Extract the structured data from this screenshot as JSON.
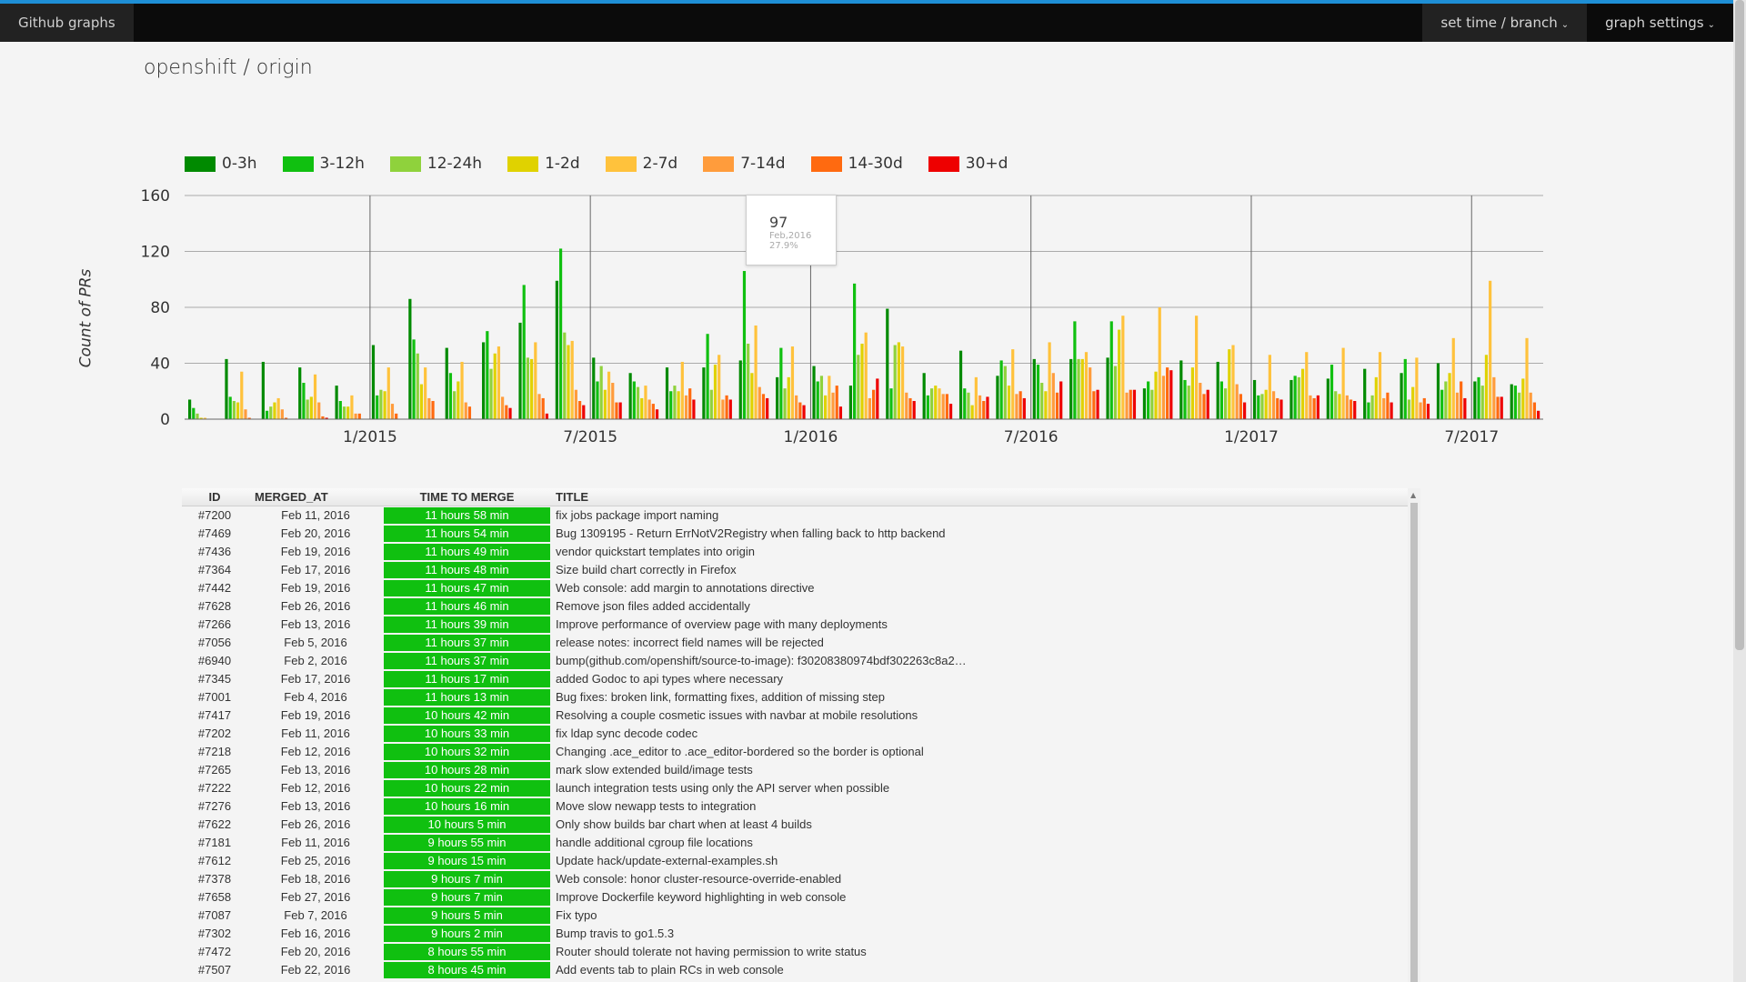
{
  "topbar": {
    "brand": "Github graphs",
    "time_branch": "set time / branch",
    "graph_settings": "graph settings"
  },
  "page_title": "openshift / origin",
  "colors": {
    "bucket_0_3h": "#008a00",
    "bucket_3_12h": "#10c010",
    "bucket_12_24h": "#8fd23c",
    "bucket_1_2d": "#e0d200",
    "bucket_2_7d": "#ffc23c",
    "bucket_7_14d": "#ff9c3c",
    "bucket_14_30d": "#ff6a10",
    "bucket_30d": "#ee0000",
    "ttm_cell": "#10c010"
  },
  "chart_data": {
    "type": "bar",
    "ylabel": "Count of PRs",
    "ylim": [
      0,
      160
    ],
    "yticks": [
      "0",
      "40",
      "80",
      "120",
      "160"
    ],
    "xticks": [
      "1/2015",
      "7/2015",
      "1/2016",
      "7/2016",
      "1/2017",
      "7/2017"
    ],
    "categories": [
      "Aug 2014",
      "Sep 2014",
      "Oct 2014",
      "Nov 2014",
      "Dec 2014",
      "Jan 2015",
      "Feb 2015",
      "Mar 2015",
      "Apr 2015",
      "May 2015",
      "Jun 2015",
      "Jul 2015",
      "Aug 2015",
      "Sep 2015",
      "Oct 2015",
      "Nov 2015",
      "Dec 2015",
      "Jan 2016",
      "Feb 2016",
      "Mar 2016",
      "Apr 2016",
      "May 2016",
      "Jun 2016",
      "Jul 2016",
      "Aug 2016",
      "Sep 2016",
      "Oct 2016",
      "Nov 2016",
      "Dec 2016",
      "Jan 2017",
      "Feb 2017",
      "Mar 2017",
      "Apr 2017",
      "May 2017",
      "Jun 2017",
      "Jul 2017",
      "Aug 2017"
    ],
    "series": [
      {
        "name": "0-3h",
        "values": [
          14,
          43,
          41,
          37,
          24,
          53,
          86,
          51,
          55,
          69,
          99,
          44,
          33,
          37,
          37,
          42,
          30,
          38,
          24,
          79,
          33,
          49,
          31,
          43,
          43,
          44,
          22,
          42,
          41,
          28,
          28,
          29,
          36,
          33,
          40,
          27,
          25
        ]
      },
      {
        "name": "3-12h",
        "values": [
          8,
          16,
          6,
          26,
          13,
          17,
          57,
          33,
          63,
          96,
          122,
          27,
          27,
          20,
          61,
          106,
          51,
          27,
          97,
          22,
          17,
          22,
          42,
          39,
          70,
          70,
          27,
          28,
          27,
          17,
          31,
          39,
          12,
          43,
          21,
          30,
          24
        ]
      },
      {
        "name": "12-24h",
        "values": [
          4,
          13,
          9,
          14,
          9,
          21,
          47,
          20,
          36,
          44,
          62,
          38,
          23,
          24,
          21,
          54,
          22,
          31,
          46,
          53,
          22,
          19,
          38,
          26,
          43,
          38,
          21,
          24,
          22,
          18,
          30,
          20,
          17,
          14,
          27,
          24,
          19
        ]
      },
      {
        "name": "1-2d",
        "values": [
          1,
          12,
          12,
          16,
          9,
          20,
          25,
          27,
          47,
          43,
          53,
          21,
          15,
          20,
          39,
          33,
          30,
          17,
          54,
          55,
          24,
          10,
          24,
          20,
          43,
          64,
          34,
          37,
          50,
          21,
          36,
          18,
          30,
          23,
          33,
          46,
          29
        ]
      },
      {
        "name": "2-7d",
        "values": [
          1,
          34,
          15,
          32,
          17,
          37,
          37,
          41,
          52,
          55,
          56,
          34,
          24,
          41,
          46,
          67,
          52,
          31,
          62,
          52,
          22,
          30,
          50,
          55,
          48,
          74,
          80,
          74,
          53,
          46,
          48,
          51,
          48,
          44,
          58,
          99,
          58
        ]
      },
      {
        "name": "7-14d",
        "values": [
          0,
          7,
          7,
          12,
          4,
          11,
          15,
          12,
          16,
          18,
          21,
          26,
          14,
          17,
          14,
          23,
          17,
          19,
          15,
          19,
          18,
          17,
          18,
          33,
          37,
          19,
          31,
          26,
          25,
          20,
          17,
          17,
          15,
          12,
          19,
          30,
          19
        ]
      },
      {
        "name": "14-30d",
        "values": [
          0,
          1,
          1,
          2,
          4,
          4,
          13,
          9,
          10,
          15,
          13,
          12,
          11,
          22,
          17,
          18,
          12,
          24,
          21,
          15,
          18,
          13,
          20,
          19,
          20,
          21,
          37,
          18,
          18,
          15,
          15,
          14,
          19,
          15,
          27,
          16,
          12
        ]
      },
      {
        "name": "30+d",
        "values": [
          0,
          0,
          0,
          1,
          0,
          0,
          0,
          0,
          8,
          4,
          10,
          12,
          7,
          14,
          14,
          15,
          10,
          9,
          29,
          13,
          11,
          16,
          15,
          27,
          21,
          21,
          35,
          21,
          12,
          14,
          17,
          13,
          12,
          11,
          15,
          16,
          6
        ]
      }
    ],
    "legend": [
      "0-3h",
      "3-12h",
      "12-24h",
      "1-2d",
      "2-7d",
      "7-14d",
      "14-30d",
      "30+d"
    ],
    "legend_position": "top-left",
    "grid": true,
    "tooltip": {
      "value": "97",
      "label": "Feb,2016",
      "percent": "27.9%"
    }
  },
  "table": {
    "headers": {
      "id": "ID",
      "merged_at": "MERGED_AT",
      "ttm": "TIME TO MERGE",
      "title": "TITLE"
    },
    "rows": [
      {
        "id": "#7200",
        "date": "Feb 11, 2016",
        "ttm": "11 hours 58 min",
        "title": "fix jobs package import naming"
      },
      {
        "id": "#7469",
        "date": "Feb 20, 2016",
        "ttm": "11 hours 54 min",
        "title": "Bug 1309195 - Return ErrNotV2Registry when falling back to http backend"
      },
      {
        "id": "#7436",
        "date": "Feb 19, 2016",
        "ttm": "11 hours 49 min",
        "title": "vendor quickstart templates into origin"
      },
      {
        "id": "#7364",
        "date": "Feb 17, 2016",
        "ttm": "11 hours 48 min",
        "title": "Size build chart correctly in Firefox"
      },
      {
        "id": "#7442",
        "date": "Feb 19, 2016",
        "ttm": "11 hours 47 min",
        "title": "Web console: add margin to annotations directive"
      },
      {
        "id": "#7628",
        "date": "Feb 26, 2016",
        "ttm": "11 hours 46 min",
        "title": "Remove json files added accidentally"
      },
      {
        "id": "#7266",
        "date": "Feb 13, 2016",
        "ttm": "11 hours 39 min",
        "title": "Improve performance of overview page with many deployments"
      },
      {
        "id": "#7056",
        "date": "Feb 5, 2016",
        "ttm": "11 hours 37 min",
        "title": "release notes: incorrect field names will be rejected"
      },
      {
        "id": "#6940",
        "date": "Feb 2, 2016",
        "ttm": "11 hours 37 min",
        "title": "bump(github.com/openshift/source-to-image): f30208380974bdf302263c8a2…"
      },
      {
        "id": "#7345",
        "date": "Feb 17, 2016",
        "ttm": "11 hours 17 min",
        "title": "added Godoc to api types where necessary"
      },
      {
        "id": "#7001",
        "date": "Feb 4, 2016",
        "ttm": "11 hours 13 min",
        "title": "Bug fixes: broken link, formatting fixes, addition of missing step"
      },
      {
        "id": "#7417",
        "date": "Feb 19, 2016",
        "ttm": "10 hours 42 min",
        "title": "Resolving a couple cosmetic issues with navbar at mobile resolutions"
      },
      {
        "id": "#7202",
        "date": "Feb 11, 2016",
        "ttm": "10 hours 33 min",
        "title": "fix ldap sync decode codec"
      },
      {
        "id": "#7218",
        "date": "Feb 12, 2016",
        "ttm": "10 hours 32 min",
        "title": "Changing .ace_editor to .ace_editor-bordered so the border is optional"
      },
      {
        "id": "#7265",
        "date": "Feb 13, 2016",
        "ttm": "10 hours 28 min",
        "title": "mark slow extended build/image tests"
      },
      {
        "id": "#7222",
        "date": "Feb 12, 2016",
        "ttm": "10 hours 22 min",
        "title": "launch integration tests using only the API server when possible"
      },
      {
        "id": "#7276",
        "date": "Feb 13, 2016",
        "ttm": "10 hours 16 min",
        "title": "Move slow newapp tests to integration"
      },
      {
        "id": "#7622",
        "date": "Feb 26, 2016",
        "ttm": "10 hours 5 min",
        "title": "Only show builds bar chart when at least 4 builds"
      },
      {
        "id": "#7181",
        "date": "Feb 11, 2016",
        "ttm": "9 hours 55 min",
        "title": "handle additional cgroup file locations"
      },
      {
        "id": "#7612",
        "date": "Feb 25, 2016",
        "ttm": "9 hours 15 min",
        "title": "Update hack/update-external-examples.sh"
      },
      {
        "id": "#7378",
        "date": "Feb 18, 2016",
        "ttm": "9 hours 7 min",
        "title": "Web console: honor cluster-resource-override-enabled"
      },
      {
        "id": "#7658",
        "date": "Feb 27, 2016",
        "ttm": "9 hours 7 min",
        "title": "Improve Dockerfile keyword highlighting in web console"
      },
      {
        "id": "#7087",
        "date": "Feb 7, 2016",
        "ttm": "9 hours 5 min",
        "title": "Fix typo"
      },
      {
        "id": "#7302",
        "date": "Feb 16, 2016",
        "ttm": "9 hours 2 min",
        "title": "Bump travis to go1.5.3"
      },
      {
        "id": "#7472",
        "date": "Feb 20, 2016",
        "ttm": "8 hours 55 min",
        "title": "Router should tolerate not having permission to write status"
      },
      {
        "id": "#7507",
        "date": "Feb 22, 2016",
        "ttm": "8 hours 45 min",
        "title": "Add events tab to plain RCs in web console"
      }
    ]
  }
}
